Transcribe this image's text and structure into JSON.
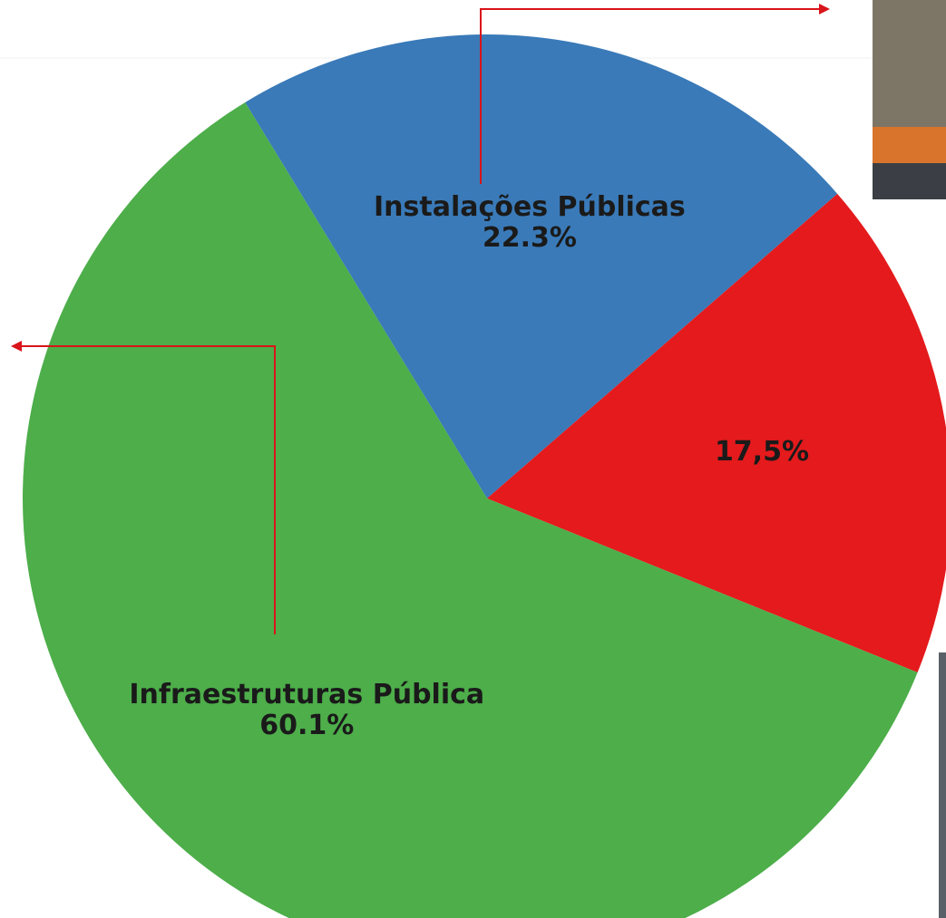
{
  "chart_data": {
    "type": "pie",
    "categories": [
      "Instalações Públicas",
      null,
      "Infraestruturas Pública"
    ],
    "values": [
      22.3,
      17.5,
      60.1
    ],
    "value_labels": [
      "22.3%",
      "17,5%",
      "60.1%"
    ],
    "colors": [
      "#3a7ab8",
      "#e41a1c",
      "#4dae4a"
    ]
  }
}
